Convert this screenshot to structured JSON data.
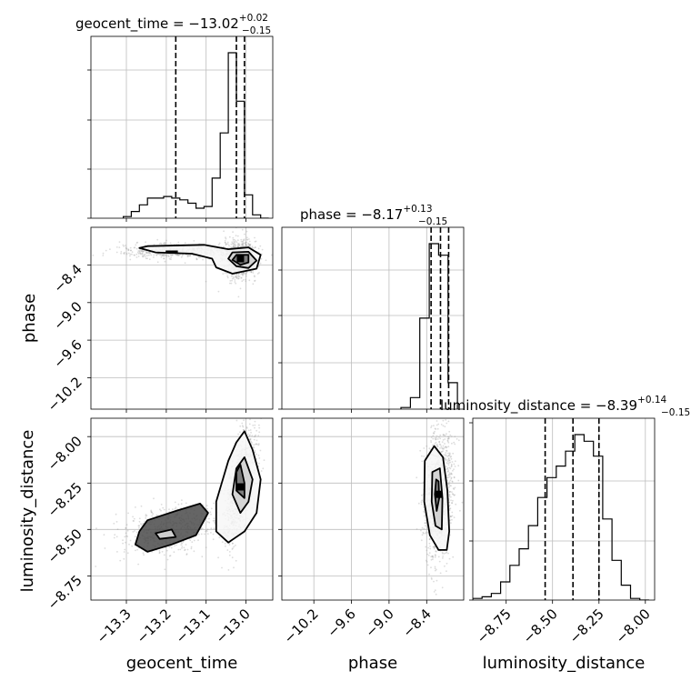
{
  "chart_data": {
    "type": "corner",
    "parameters": [
      "geocent_time",
      "phase",
      "luminosity_distance"
    ],
    "titles": [
      {
        "param": "geocent_time",
        "text": "geocent_time = −13.02",
        "sup": "+0.02",
        "sub": "−0.15"
      },
      {
        "param": "phase",
        "text": "phase = −8.17",
        "sup": "+0.13",
        "sub": "−0.15"
      },
      {
        "param": "luminosity_distance",
        "text": "luminosity_distance = −8.39",
        "sup": "+0.14",
        "sub": "−0.15"
      }
    ],
    "axes": {
      "geocent_time": {
        "range": [
          -13.38,
          -12.93
        ],
        "ticks": [
          -13.3,
          -13.2,
          -13.1,
          -13.0
        ],
        "tick_labels": [
          "−13.3",
          "−13.2",
          "−13.1",
          "−13.0"
        ]
      },
      "phase": {
        "range": [
          -10.7,
          -7.8
        ],
        "ticks": [
          -10.2,
          -9.6,
          -9.0,
          -8.4
        ],
        "tick_labels": [
          "−10.2",
          "−9.6",
          "−9.0",
          "−8.4"
        ]
      },
      "luminosity_distance": {
        "range": [
          -8.93,
          -7.95
        ],
        "ticks": [
          -8.75,
          -8.5,
          -8.25,
          -8.0
        ],
        "tick_labels": [
          "−8.75",
          "−8.50",
          "−8.25",
          "−8.00"
        ]
      }
    },
    "histograms": {
      "geocent_time": {
        "edges": [
          -13.3,
          -13.28,
          -13.26,
          -13.24,
          -13.22,
          -13.2,
          -13.18,
          -13.16,
          -13.14,
          -13.12,
          -13.1,
          -13.08,
          -13.06,
          -13.04,
          -13.02,
          -13.0,
          -12.98,
          -12.96,
          -12.94
        ],
        "counts": [
          0.01,
          0.04,
          0.08,
          0.12,
          0.12,
          0.13,
          0.12,
          0.11,
          0.09,
          0.06,
          0.07,
          0.24,
          0.51,
          0.99,
          0.7,
          0.14,
          0.02,
          0
        ],
        "quantiles": [
          -13.17,
          -13.02,
          -13.0
        ]
      },
      "phase": {
        "edges": [
          -8.8,
          -8.65,
          -8.5,
          -8.35,
          -8.2,
          -8.05,
          -7.9
        ],
        "counts": [
          0.01,
          0.07,
          0.55,
          1.0,
          0.93,
          0.16
        ],
        "quantiles": [
          -8.32,
          -8.17,
          -8.04
        ]
      },
      "luminosity_distance": {
        "edges": [
          -8.93,
          -8.88,
          -8.83,
          -8.78,
          -8.73,
          -8.68,
          -8.63,
          -8.58,
          -8.53,
          -8.48,
          -8.43,
          -8.38,
          -8.33,
          -8.28,
          -8.23,
          -8.18,
          -8.13,
          -8.08,
          -8.03,
          -7.98
        ],
        "counts": [
          0.01,
          0.02,
          0.04,
          0.11,
          0.21,
          0.31,
          0.45,
          0.62,
          0.74,
          0.81,
          0.9,
          1.0,
          0.96,
          0.87,
          0.49,
          0.24,
          0.09,
          0.01,
          0.0
        ],
        "quantiles": [
          -8.54,
          -8.39,
          -8.25
        ]
      }
    },
    "pairs": [
      {
        "x": "geocent_time",
        "y": "phase",
        "clusters": [
          {
            "cx": -13.01,
            "cy": -8.3,
            "sx": 0.02,
            "sy": 0.15,
            "rho": 0,
            "n": 900
          },
          {
            "cx": -13.17,
            "cy": -8.18,
            "sx": 0.07,
            "sy": 0.06,
            "rho": 0,
            "n": 500
          }
        ],
        "contours": [
          [
            [
              -13.24,
              -8.1
            ],
            [
              -13.1,
              -8.08
            ],
            [
              -13.04,
              -8.15
            ],
            [
              -12.99,
              -8.12
            ],
            [
              -12.96,
              -8.24
            ],
            [
              -12.97,
              -8.46
            ],
            [
              -13.03,
              -8.54
            ],
            [
              -13.07,
              -8.44
            ],
            [
              -13.08,
              -8.3
            ],
            [
              -13.13,
              -8.22
            ],
            [
              -13.22,
              -8.2
            ],
            [
              -13.26,
              -8.13
            ]
          ],
          [
            [
              -13.03,
              -8.2
            ],
            [
              -12.99,
              -8.19
            ],
            [
              -12.97,
              -8.33
            ],
            [
              -12.99,
              -8.45
            ],
            [
              -13.02,
              -8.42
            ],
            [
              -13.04,
              -8.3
            ]
          ],
          [
            [
              -13.02,
              -8.24
            ],
            [
              -12.99,
              -8.24
            ],
            [
              -12.99,
              -8.36
            ],
            [
              -13.01,
              -8.4
            ],
            [
              -13.03,
              -8.32
            ]
          ],
          [
            [
              -13.195,
              -8.185
            ],
            [
              -13.165,
              -8.185
            ]
          ]
        ]
      },
      {
        "x": "geocent_time",
        "y": "luminosity_distance",
        "clusters": [
          {
            "cx": -13.01,
            "cy": -8.32,
            "sx": 0.02,
            "sy": 0.15,
            "rho": 0.6,
            "n": 900
          },
          {
            "cx": -13.19,
            "cy": -8.56,
            "sx": 0.06,
            "sy": 0.07,
            "rho": 0.3,
            "n": 500
          }
        ],
        "contours": [
          [
            [
              -13.0,
              -8.02
            ],
            [
              -12.98,
              -8.12
            ],
            [
              -12.96,
              -8.28
            ],
            [
              -12.97,
              -8.46
            ],
            [
              -13.0,
              -8.56
            ],
            [
              -13.04,
              -8.62
            ],
            [
              -13.07,
              -8.56
            ],
            [
              -13.07,
              -8.4
            ],
            [
              -13.04,
              -8.18
            ],
            [
              -13.02,
              -8.08
            ]
          ],
          [
            [
              -13.0,
              -8.16
            ],
            [
              -12.98,
              -8.28
            ],
            [
              -12.99,
              -8.4
            ],
            [
              -13.01,
              -8.46
            ],
            [
              -13.03,
              -8.36
            ],
            [
              -13.02,
              -8.22
            ]
          ],
          [
            [
              -13.01,
              -8.2
            ],
            [
              -13.0,
              -8.3
            ],
            [
              -13.0,
              -8.38
            ],
            [
              -13.02,
              -8.34
            ],
            [
              -13.02,
              -8.24
            ]
          ],
          [
            [
              -13.26,
              -8.56
            ],
            [
              -13.24,
              -8.5
            ],
            [
              -13.17,
              -8.45
            ],
            [
              -13.11,
              -8.41
            ],
            [
              -13.09,
              -8.46
            ],
            [
              -13.12,
              -8.58
            ],
            [
              -13.18,
              -8.63
            ],
            [
              -13.24,
              -8.67
            ],
            [
              -13.27,
              -8.63
            ]
          ],
          [
            [
              -13.22,
              -8.57
            ],
            [
              -13.18,
              -8.55
            ],
            [
              -13.17,
              -8.59
            ],
            [
              -13.21,
              -8.6
            ]
          ]
        ]
      },
      {
        "x": "phase",
        "y": "luminosity_distance",
        "clusters": [
          {
            "cx": -8.2,
            "cy": -8.36,
            "sx": 0.11,
            "sy": 0.17,
            "rho": 0.2,
            "n": 1300
          }
        ],
        "contours": [
          [
            [
              -8.42,
              -8.18
            ],
            [
              -8.27,
              -8.1
            ],
            [
              -8.13,
              -8.16
            ],
            [
              -8.06,
              -8.34
            ],
            [
              -8.03,
              -8.56
            ],
            [
              -8.07,
              -8.66
            ],
            [
              -8.2,
              -8.66
            ],
            [
              -8.34,
              -8.58
            ],
            [
              -8.43,
              -8.4
            ]
          ],
          [
            [
              -8.3,
              -8.24
            ],
            [
              -8.18,
              -8.22
            ],
            [
              -8.14,
              -8.38
            ],
            [
              -8.15,
              -8.55
            ],
            [
              -8.25,
              -8.53
            ],
            [
              -8.31,
              -8.4
            ]
          ],
          [
            [
              -8.24,
              -8.28
            ],
            [
              -8.2,
              -8.29
            ],
            [
              -8.19,
              -8.38
            ],
            [
              -8.23,
              -8.45
            ],
            [
              -8.26,
              -8.36
            ]
          ]
        ]
      }
    ],
    "grid": true
  }
}
